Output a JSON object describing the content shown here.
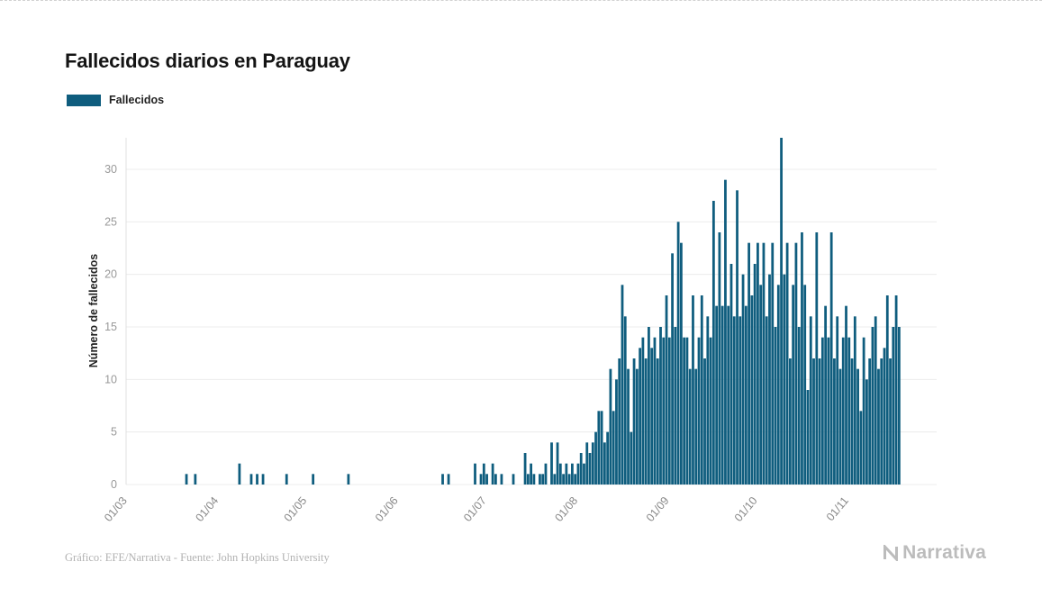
{
  "title": "Fallecidos diarios en Paraguay",
  "legend": {
    "label": "Fallecidos"
  },
  "footer": {
    "credit": "Gráfico: EFE/Narrativa - Fuente: John Hopkins University"
  },
  "logo": {
    "text": "Narrativa"
  },
  "chart_data": {
    "type": "bar",
    "title": "Fallecidos diarios en Paraguay",
    "xlabel": "",
    "ylabel": "Número de fallecidos",
    "ylim": [
      0,
      34
    ],
    "yticks": [
      0,
      5,
      10,
      15,
      20,
      25,
      30
    ],
    "grid": "horizontal",
    "legend_position": "top-left",
    "legend": [
      "Fallecidos"
    ],
    "bar_color": "#0f5d7e",
    "x_unit": "day",
    "start_label": "01/03",
    "x_tick_labels": [
      "01/03",
      "01/04",
      "01/05",
      "01/06",
      "01/07",
      "01/08",
      "01/09",
      "01/10",
      "01/11"
    ],
    "x_tick_indices": [
      0,
      31,
      61,
      92,
      122,
      153,
      184,
      214,
      245
    ],
    "values": [
      0,
      0,
      0,
      0,
      0,
      0,
      0,
      0,
      0,
      0,
      0,
      0,
      0,
      0,
      0,
      0,
      0,
      0,
      0,
      0,
      1,
      0,
      0,
      1,
      0,
      0,
      0,
      0,
      0,
      0,
      0,
      0,
      0,
      0,
      0,
      0,
      0,
      0,
      2,
      0,
      0,
      0,
      1,
      0,
      1,
      0,
      1,
      0,
      0,
      0,
      0,
      0,
      0,
      0,
      1,
      0,
      0,
      0,
      0,
      0,
      0,
      0,
      0,
      1,
      0,
      0,
      0,
      0,
      0,
      0,
      0,
      0,
      0,
      0,
      0,
      1,
      0,
      0,
      0,
      0,
      0,
      0,
      0,
      0,
      0,
      0,
      0,
      0,
      0,
      0,
      0,
      0,
      0,
      0,
      0,
      0,
      0,
      0,
      0,
      0,
      0,
      0,
      0,
      0,
      0,
      0,
      0,
      1,
      0,
      1,
      0,
      0,
      0,
      0,
      0,
      0,
      0,
      0,
      2,
      0,
      1,
      2,
      1,
      0,
      2,
      1,
      0,
      1,
      0,
      0,
      0,
      1,
      0,
      0,
      0,
      3,
      1,
      2,
      1,
      0,
      1,
      1,
      2,
      0,
      4,
      1,
      4,
      2,
      1,
      2,
      1,
      2,
      1,
      2,
      3,
      2,
      4,
      3,
      4,
      5,
      7,
      7,
      4,
      5,
      11,
      7,
      10,
      12,
      19,
      16,
      11,
      5,
      12,
      11,
      13,
      14,
      12,
      15,
      13,
      14,
      12,
      15,
      14,
      18,
      14,
      22,
      15,
      25,
      23,
      14,
      14,
      11,
      18,
      11,
      14,
      18,
      12,
      16,
      14,
      27,
      17,
      24,
      17,
      29,
      17,
      21,
      16,
      28,
      16,
      20,
      17,
      23,
      18,
      21,
      23,
      19,
      23,
      16,
      20,
      23,
      15,
      19,
      33,
      20,
      23,
      12,
      19,
      23,
      15,
      24,
      19,
      9,
      16,
      12,
      24,
      12,
      14,
      17,
      14,
      24,
      12,
      16,
      11,
      14,
      17,
      14,
      12,
      16,
      11,
      7,
      14,
      10,
      12,
      15,
      16,
      11,
      12,
      13,
      18,
      12,
      15,
      18,
      15
    ]
  }
}
